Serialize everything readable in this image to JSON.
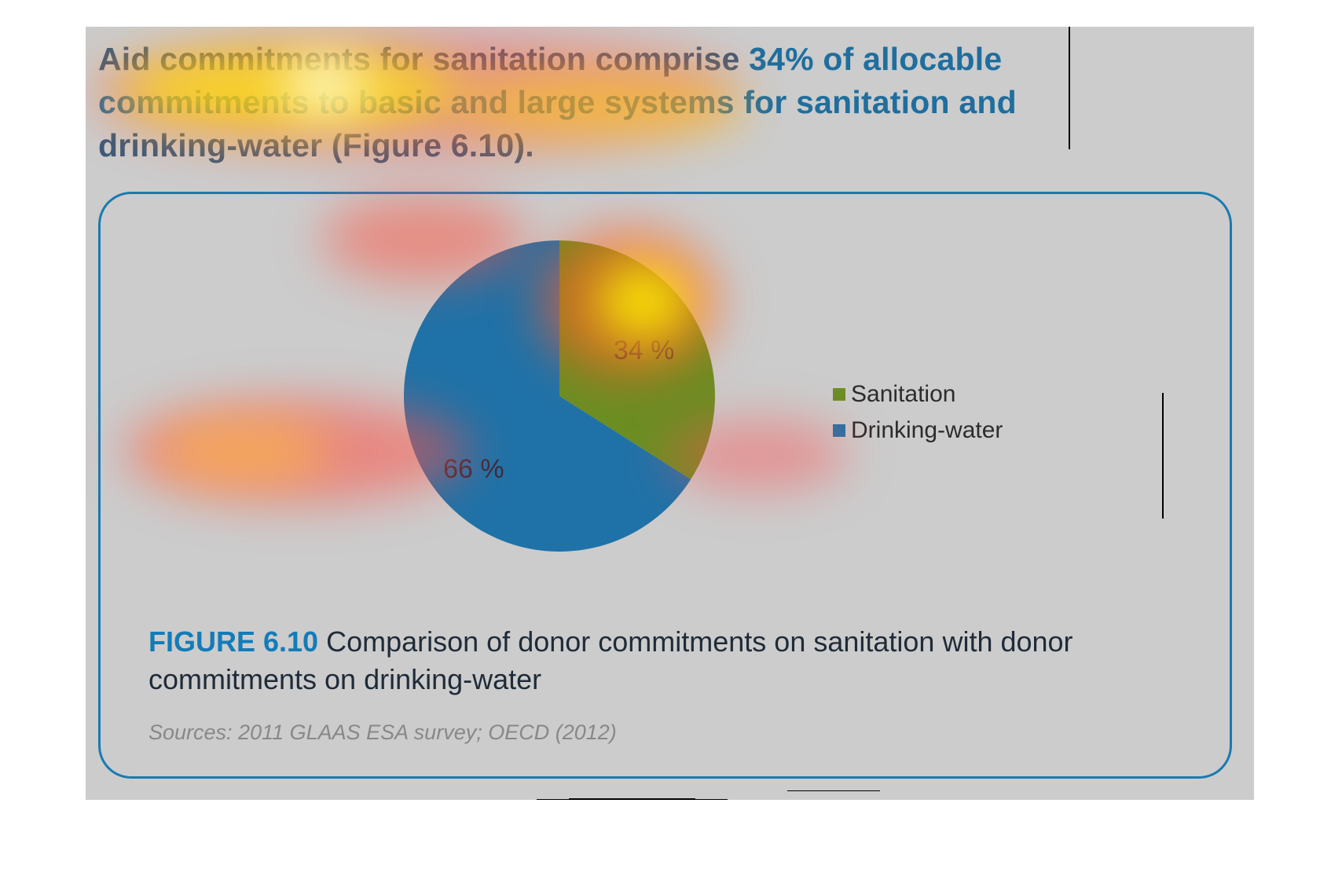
{
  "heading": {
    "part1": "Aid commitments for sanitation comprise ",
    "part2": "34% of allocable commitments to basic and large systems for sanitation and",
    "part3": "drinking-water (Figure 6.10)."
  },
  "caption": {
    "label": "FIGURE 6.10",
    "text": " Comparison of donor commitments on sanitation with donor commitments on drinking-water"
  },
  "sources": "Sources: 2011 GLAAS ESA survey; OECD (2012)",
  "chart_data": {
    "type": "pie",
    "categories": [
      "Sanitation",
      "Drinking-water"
    ],
    "values": [
      34,
      66
    ],
    "slice_labels": [
      "34 %",
      "66 %"
    ],
    "colors": [
      "#6b8e23",
      "#1f72a8"
    ],
    "start_angle_deg": 0,
    "direction": "clockwise",
    "legend_position": "right"
  }
}
